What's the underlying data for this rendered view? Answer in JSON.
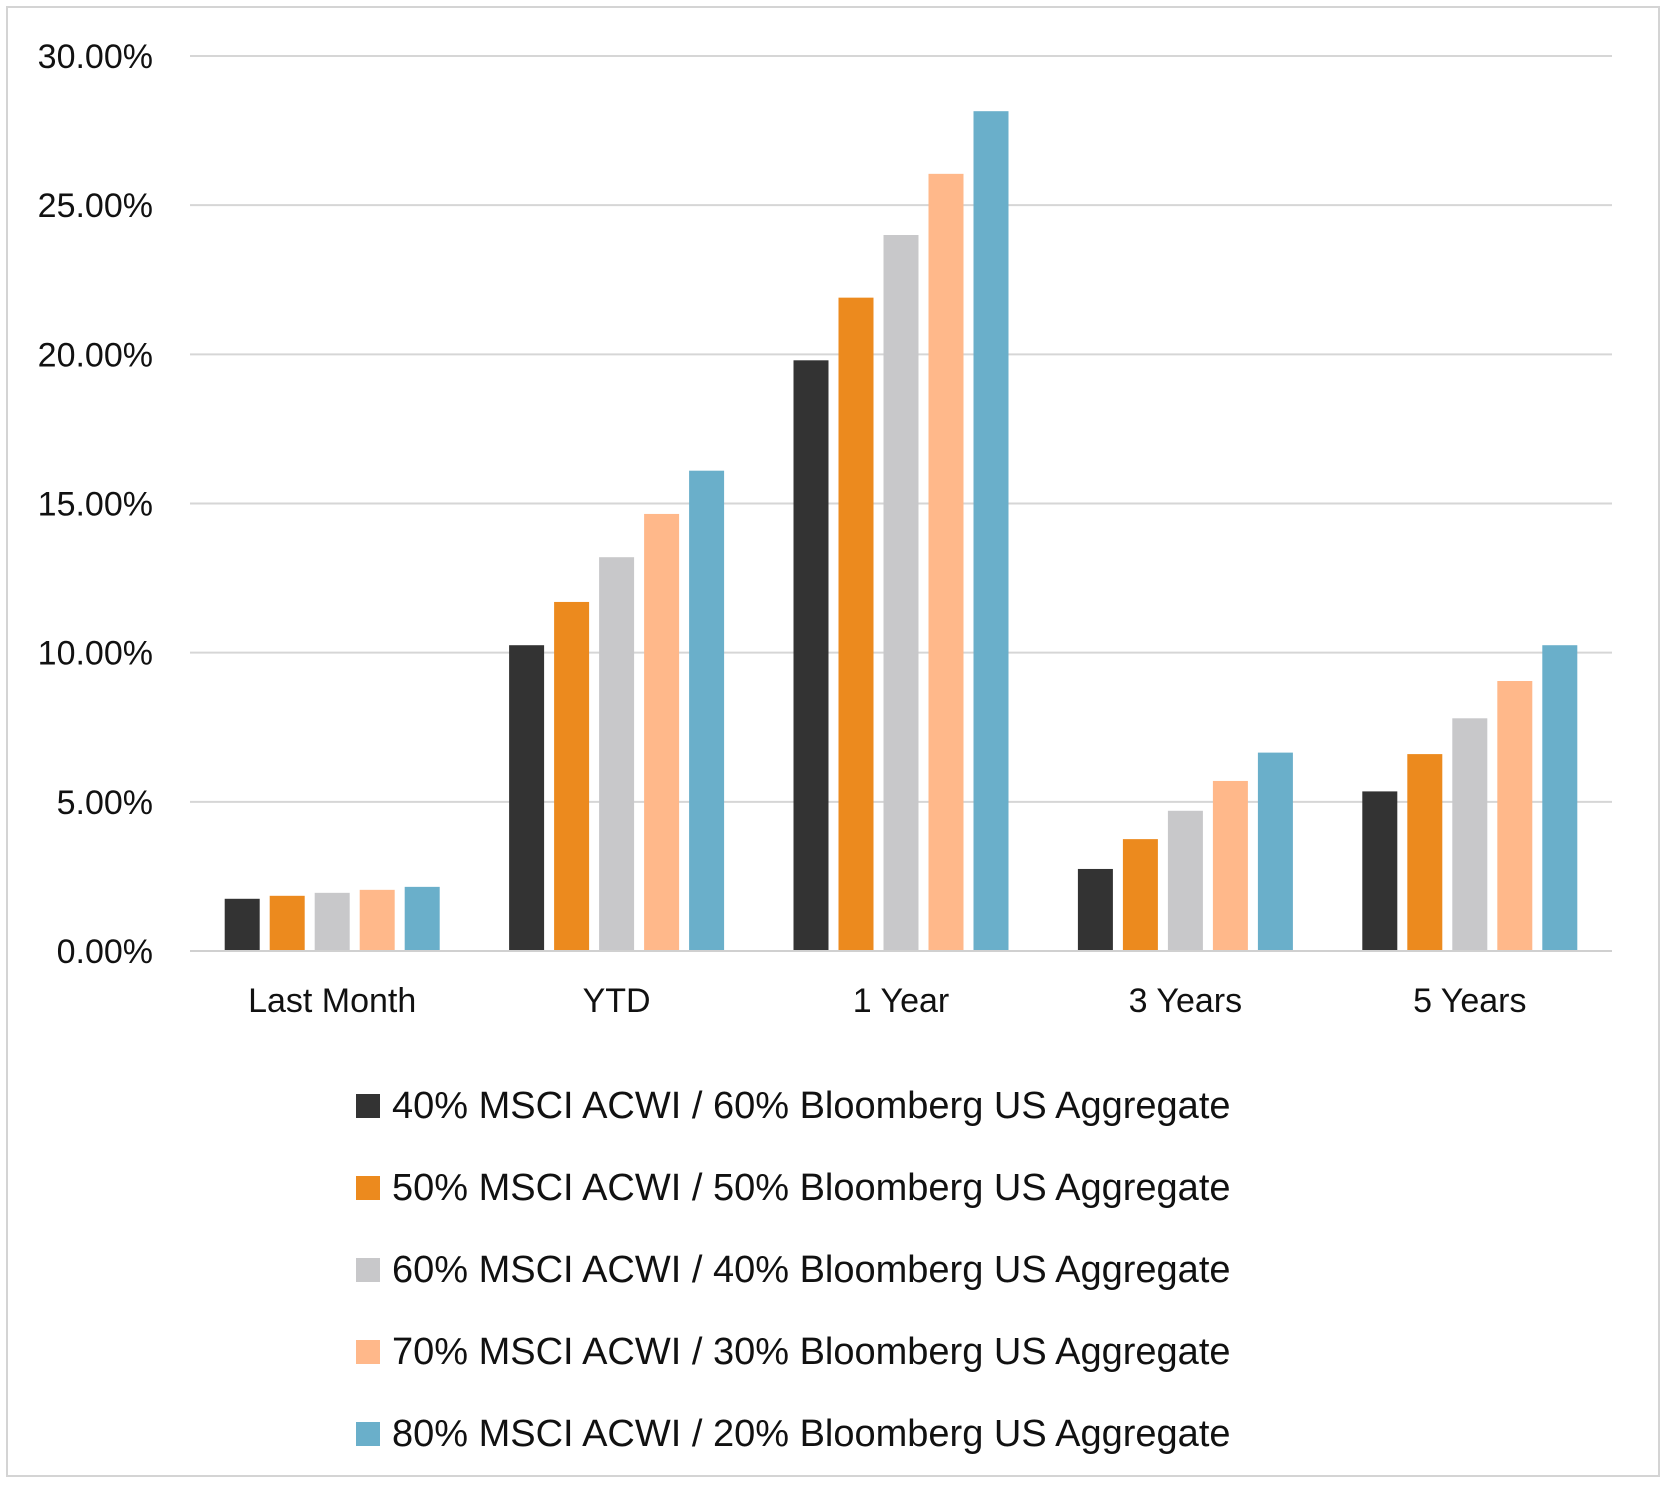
{
  "chart_data": {
    "type": "bar",
    "title": "",
    "xlabel": "",
    "ylabel": "",
    "ylim": [
      0,
      30
    ],
    "yticks": [
      "0.00%",
      "5.00%",
      "10.00%",
      "15.00%",
      "20.00%",
      "25.00%",
      "30.00%"
    ],
    "grid": true,
    "legend_position": "bottom",
    "categories": [
      "Last Month",
      "YTD",
      "1 Year",
      "3 Years",
      "5 Years"
    ],
    "series": [
      {
        "name": "40% MSCI ACWI / 60% Bloomberg US Aggregate",
        "color": "#333333",
        "values": [
          1.75,
          10.25,
          19.8,
          2.75,
          5.35
        ]
      },
      {
        "name": "50% MSCI ACWI / 50% Bloomberg US Aggregate",
        "color": "#ec8a1e",
        "values": [
          1.85,
          11.7,
          21.9,
          3.75,
          6.6
        ]
      },
      {
        "name": "60% MSCI ACWI / 40% Bloomberg US Aggregate",
        "color": "#c8c8ca",
        "values": [
          1.95,
          13.2,
          24.0,
          4.7,
          7.8
        ]
      },
      {
        "name": "70% MSCI ACWI / 30% Bloomberg US Aggregate",
        "color": "#ffb88a",
        "values": [
          2.05,
          14.65,
          26.05,
          5.7,
          9.05
        ]
      },
      {
        "name": "80% MSCI ACWI / 20% Bloomberg US Aggregate",
        "color": "#6aafca",
        "values": [
          2.15,
          16.1,
          28.15,
          6.65,
          10.25
        ]
      }
    ]
  }
}
